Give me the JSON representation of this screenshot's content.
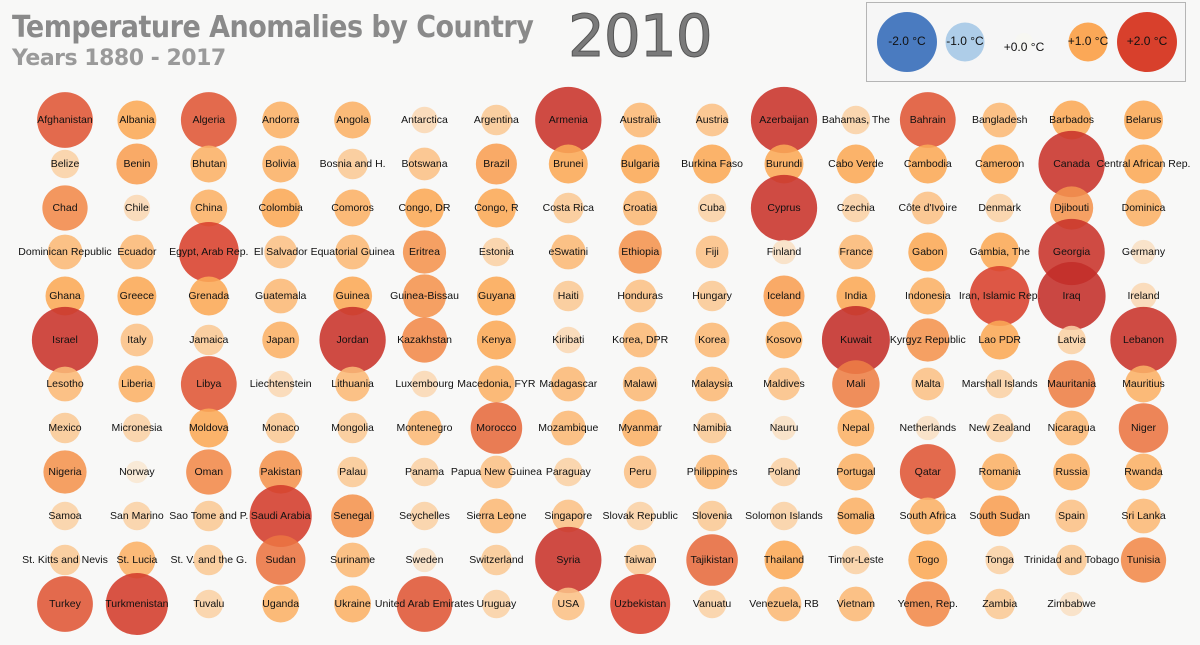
{
  "header": {
    "title": "Temperature Anomalies by Country",
    "subtitle": "Years 1880 - 2017",
    "year": "2010"
  },
  "legend": {
    "items": [
      {
        "label": "-2.0 °C",
        "value": -2.0,
        "color": "#4a7bc0"
      },
      {
        "label": "-1.0 °C",
        "value": -1.0,
        "color": "#aecde8"
      },
      {
        "label": "+0.0 °C",
        "value": 0.0,
        "color": "#f7f7f2"
      },
      {
        "label": "+1.0 °C",
        "value": 1.0,
        "color": "#fba857"
      },
      {
        "label": "+2.0 °C",
        "value": 2.0,
        "color": "#d8402c"
      }
    ]
  },
  "chart_data": {
    "type": "scatter",
    "title": "Temperature Anomalies by Country",
    "subtitle": "Years 1880 - 2017",
    "year": "2010",
    "units": "°C",
    "columns": 15,
    "color_scale": {
      "-2.0": "#4a7bc0",
      "-1.0": "#aecde8",
      "0.0": "#f7f7f2",
      "1.0": "#fba857",
      "2.0": "#d8402c"
    },
    "countries": [
      {
        "name": "Afghanistan",
        "anomaly": 1.8
      },
      {
        "name": "Albania",
        "anomaly": 1.0
      },
      {
        "name": "Algeria",
        "anomaly": 1.8
      },
      {
        "name": "Andorra",
        "anomaly": 0.9
      },
      {
        "name": "Angola",
        "anomaly": 0.9
      },
      {
        "name": "Antarctica",
        "anomaly": 0.4
      },
      {
        "name": "Argentina",
        "anomaly": 0.6
      },
      {
        "name": "Armenia",
        "anomaly": 2.3
      },
      {
        "name": "Australia",
        "anomaly": 0.8
      },
      {
        "name": "Austria",
        "anomaly": 0.7
      },
      {
        "name": "Azerbaijan",
        "anomaly": 2.3
      },
      {
        "name": "Bahamas, The",
        "anomaly": 0.5
      },
      {
        "name": "Bahrain",
        "anomaly": 1.8
      },
      {
        "name": "Bangladesh",
        "anomaly": 0.8
      },
      {
        "name": "Barbados",
        "anomaly": 1.0
      },
      {
        "name": "Belarus",
        "anomaly": 1.0
      },
      {
        "name": "Belize",
        "anomaly": 0.5
      },
      {
        "name": "Benin",
        "anomaly": 1.1
      },
      {
        "name": "Bhutan",
        "anomaly": 0.9
      },
      {
        "name": "Bolivia",
        "anomaly": 0.9
      },
      {
        "name": "Bosnia and H.",
        "anomaly": 0.6
      },
      {
        "name": "Botswana",
        "anomaly": 0.7
      },
      {
        "name": "Brazil",
        "anomaly": 1.1
      },
      {
        "name": "Brunei",
        "anomaly": 1.0
      },
      {
        "name": "Bulgaria",
        "anomaly": 1.0
      },
      {
        "name": "Burkina Faso",
        "anomaly": 1.0
      },
      {
        "name": "Burundi",
        "anomaly": 1.0
      },
      {
        "name": "Cabo Verde",
        "anomaly": 1.0
      },
      {
        "name": "Cambodia",
        "anomaly": 1.0
      },
      {
        "name": "Cameroon",
        "anomaly": 1.0
      },
      {
        "name": "Canada",
        "anomaly": 2.3
      },
      {
        "name": "Central African Rep.",
        "anomaly": 1.0
      },
      {
        "name": "Chad",
        "anomaly": 1.3
      },
      {
        "name": "Chile",
        "anomaly": 0.4
      },
      {
        "name": "China",
        "anomaly": 0.9
      },
      {
        "name": "Colombia",
        "anomaly": 1.0
      },
      {
        "name": "Comoros",
        "anomaly": 0.9
      },
      {
        "name": "Congo, DR",
        "anomaly": 1.0
      },
      {
        "name": "Congo, R",
        "anomaly": 1.0
      },
      {
        "name": "Costa Rica",
        "anomaly": 0.6
      },
      {
        "name": "Croatia",
        "anomaly": 0.8
      },
      {
        "name": "Cuba",
        "anomaly": 0.5
      },
      {
        "name": "Cyprus",
        "anomaly": 2.3
      },
      {
        "name": "Czechia",
        "anomaly": 0.5
      },
      {
        "name": "Côte d'Ivoire",
        "anomaly": 0.7
      },
      {
        "name": "Denmark",
        "anomaly": 0.5
      },
      {
        "name": "Djibouti",
        "anomaly": 1.2
      },
      {
        "name": "Dominica",
        "anomaly": 0.9
      },
      {
        "name": "Dominican Republic",
        "anomaly": 0.8
      },
      {
        "name": "Ecuador",
        "anomaly": 0.8
      },
      {
        "name": "Egypt, Arab Rep.",
        "anomaly": 2.0
      },
      {
        "name": "El Salvador",
        "anomaly": 0.7
      },
      {
        "name": "Equatorial Guinea",
        "anomaly": 0.8
      },
      {
        "name": "Eritrea",
        "anomaly": 1.2
      },
      {
        "name": "Estonia",
        "anomaly": 0.5
      },
      {
        "name": "eSwatini",
        "anomaly": 0.8
      },
      {
        "name": "Ethiopia",
        "anomaly": 1.2
      },
      {
        "name": "Fiji",
        "anomaly": 0.7
      },
      {
        "name": "Finland",
        "anomaly": 0.3
      },
      {
        "name": "France",
        "anomaly": 0.8
      },
      {
        "name": "Gabon",
        "anomaly": 1.0
      },
      {
        "name": "Gambia, The",
        "anomaly": 1.0
      },
      {
        "name": "Georgia",
        "anomaly": 2.3
      },
      {
        "name": "Germany",
        "anomaly": 0.3
      },
      {
        "name": "Ghana",
        "anomaly": 1.0
      },
      {
        "name": "Greece",
        "anomaly": 1.0
      },
      {
        "name": "Grenada",
        "anomaly": 1.0
      },
      {
        "name": "Guatemala",
        "anomaly": 0.8
      },
      {
        "name": "Guinea",
        "anomaly": 1.0
      },
      {
        "name": "Guinea-Bissau",
        "anomaly": 1.2
      },
      {
        "name": "Guyana",
        "anomaly": 1.0
      },
      {
        "name": "Haiti",
        "anomaly": 0.6
      },
      {
        "name": "Honduras",
        "anomaly": 0.7
      },
      {
        "name": "Hungary",
        "anomaly": 0.6
      },
      {
        "name": "Iceland",
        "anomaly": 1.1
      },
      {
        "name": "India",
        "anomaly": 1.0
      },
      {
        "name": "Indonesia",
        "anomaly": 0.9
      },
      {
        "name": "Iran, Islamic Rep.",
        "anomaly": 2.0
      },
      {
        "name": "Iraq",
        "anomaly": 2.4
      },
      {
        "name": "Ireland",
        "anomaly": 0.4
      },
      {
        "name": "Israel",
        "anomaly": 2.3
      },
      {
        "name": "Italy",
        "anomaly": 0.7
      },
      {
        "name": "Jamaica",
        "anomaly": 0.6
      },
      {
        "name": "Japan",
        "anomaly": 0.9
      },
      {
        "name": "Jordan",
        "anomaly": 2.3
      },
      {
        "name": "Kazakhstan",
        "anomaly": 1.3
      },
      {
        "name": "Kenya",
        "anomaly": 1.0
      },
      {
        "name": "Kiribati",
        "anomaly": 0.4
      },
      {
        "name": "Korea, DPR",
        "anomaly": 0.8
      },
      {
        "name": "Korea",
        "anomaly": 0.8
      },
      {
        "name": "Kosovo",
        "anomaly": 0.9
      },
      {
        "name": "Kuwait",
        "anomaly": 2.4
      },
      {
        "name": "Kyrgyz Republic",
        "anomaly": 1.2
      },
      {
        "name": "Lao PDR",
        "anomaly": 1.0
      },
      {
        "name": "Latvia",
        "anomaly": 0.5
      },
      {
        "name": "Lebanon",
        "anomaly": 2.3
      },
      {
        "name": "Lesotho",
        "anomaly": 0.8
      },
      {
        "name": "Liberia",
        "anomaly": 0.9
      },
      {
        "name": "Libya",
        "anomaly": 1.8
      },
      {
        "name": "Liechtenstein",
        "anomaly": 0.4
      },
      {
        "name": "Lithuania",
        "anomaly": 0.8
      },
      {
        "name": "Luxembourg",
        "anomaly": 0.4
      },
      {
        "name": "Macedonia, FYR",
        "anomaly": 0.9
      },
      {
        "name": "Madagascar",
        "anomaly": 0.8
      },
      {
        "name": "Malawi",
        "anomaly": 0.8
      },
      {
        "name": "Malaysia",
        "anomaly": 0.8
      },
      {
        "name": "Maldives",
        "anomaly": 0.7
      },
      {
        "name": "Mali",
        "anomaly": 1.4
      },
      {
        "name": "Malta",
        "anomaly": 0.7
      },
      {
        "name": "Marshall Islands",
        "anomaly": 0.5
      },
      {
        "name": "Mauritania",
        "anomaly": 1.4
      },
      {
        "name": "Mauritius",
        "anomaly": 0.9
      },
      {
        "name": "Mexico",
        "anomaly": 0.6
      },
      {
        "name": "Micronesia",
        "anomaly": 0.5
      },
      {
        "name": "Moldova",
        "anomaly": 1.0
      },
      {
        "name": "Monaco",
        "anomaly": 0.6
      },
      {
        "name": "Mongolia",
        "anomaly": 0.6
      },
      {
        "name": "Montenegro",
        "anomaly": 0.8
      },
      {
        "name": "Morocco",
        "anomaly": 1.6
      },
      {
        "name": "Mozambique",
        "anomaly": 0.8
      },
      {
        "name": "Myanmar",
        "anomaly": 0.9
      },
      {
        "name": "Namibia",
        "anomaly": 0.6
      },
      {
        "name": "Nauru",
        "anomaly": 0.3
      },
      {
        "name": "Nepal",
        "anomaly": 0.9
      },
      {
        "name": "Netherlands",
        "anomaly": 0.3
      },
      {
        "name": "New Zealand",
        "anomaly": 0.5
      },
      {
        "name": "Nicaragua",
        "anomaly": 0.8
      },
      {
        "name": "Niger",
        "anomaly": 1.5
      },
      {
        "name": "Nigeria",
        "anomaly": 1.2
      },
      {
        "name": "Norway",
        "anomaly": 0.2
      },
      {
        "name": "Oman",
        "anomaly": 1.3
      },
      {
        "name": "Pakistan",
        "anomaly": 1.2
      },
      {
        "name": "Palau",
        "anomaly": 0.6
      },
      {
        "name": "Panama",
        "anomaly": 0.5
      },
      {
        "name": "Papua New Guinea",
        "anomaly": 0.7
      },
      {
        "name": "Paraguay",
        "anomaly": 0.5
      },
      {
        "name": "Peru",
        "anomaly": 0.7
      },
      {
        "name": "Philippines",
        "anomaly": 0.8
      },
      {
        "name": "Poland",
        "anomaly": 0.5
      },
      {
        "name": "Portugal",
        "anomaly": 0.9
      },
      {
        "name": "Qatar",
        "anomaly": 1.8
      },
      {
        "name": "Romania",
        "anomaly": 0.9
      },
      {
        "name": "Russia",
        "anomaly": 0.9
      },
      {
        "name": "Rwanda",
        "anomaly": 0.9
      },
      {
        "name": "Samoa",
        "anomaly": 0.5
      },
      {
        "name": "San Marino",
        "anomaly": 0.5
      },
      {
        "name": "Sao Tome and P.",
        "anomaly": 0.6
      },
      {
        "name": "Saudi Arabia",
        "anomaly": 2.1
      },
      {
        "name": "Senegal",
        "anomaly": 1.2
      },
      {
        "name": "Seychelles",
        "anomaly": 0.5
      },
      {
        "name": "Sierra Leone",
        "anomaly": 0.8
      },
      {
        "name": "Singapore",
        "anomaly": 0.7
      },
      {
        "name": "Slovak Republic",
        "anomaly": 0.5
      },
      {
        "name": "Slovenia",
        "anomaly": 0.6
      },
      {
        "name": "Solomon Islands",
        "anomaly": 0.5
      },
      {
        "name": "Somalia",
        "anomaly": 0.9
      },
      {
        "name": "South Africa",
        "anomaly": 0.9
      },
      {
        "name": "South Sudan",
        "anomaly": 1.1
      },
      {
        "name": "Spain",
        "anomaly": 0.7
      },
      {
        "name": "Sri Lanka",
        "anomaly": 0.8
      },
      {
        "name": "St. Kitts and Nevis",
        "anomaly": 0.6
      },
      {
        "name": "St. Lucia",
        "anomaly": 0.9
      },
      {
        "name": "St. V. and the G.",
        "anomaly": 0.6
      },
      {
        "name": "Sudan",
        "anomaly": 1.5
      },
      {
        "name": "Suriname",
        "anomaly": 0.8
      },
      {
        "name": "Sweden",
        "anomaly": 0.3
      },
      {
        "name": "Switzerland",
        "anomaly": 0.6
      },
      {
        "name": "Syria",
        "anomaly": 2.3
      },
      {
        "name": "Taiwan",
        "anomaly": 0.6
      },
      {
        "name": "Tajikistan",
        "anomaly": 1.6
      },
      {
        "name": "Thailand",
        "anomaly": 1.0
      },
      {
        "name": "Timor-Leste",
        "anomaly": 0.5
      },
      {
        "name": "Togo",
        "anomaly": 1.0
      },
      {
        "name": "Tonga",
        "anomaly": 0.5
      },
      {
        "name": "Trinidad and Tobago",
        "anomaly": 0.6
      },
      {
        "name": "Tunisia",
        "anomaly": 1.3
      },
      {
        "name": "Turkey",
        "anomaly": 1.8
      },
      {
        "name": "Turkmenistan",
        "anomaly": 2.1
      },
      {
        "name": "Tuvalu",
        "anomaly": 0.5
      },
      {
        "name": "Uganda",
        "anomaly": 0.9
      },
      {
        "name": "Ukraine",
        "anomaly": 0.9
      },
      {
        "name": "United Arab Emirates",
        "anomaly": 1.8
      },
      {
        "name": "Uruguay",
        "anomaly": 0.5
      },
      {
        "name": "USA",
        "anomaly": 0.7
      },
      {
        "name": "Uzbekistan",
        "anomaly": 2.0
      },
      {
        "name": "Vanuatu",
        "anomaly": 0.5
      },
      {
        "name": "Venezuela, RB",
        "anomaly": 0.8
      },
      {
        "name": "Vietnam",
        "anomaly": 0.8
      },
      {
        "name": "Yemen, Rep.",
        "anomaly": 1.3
      },
      {
        "name": "Zambia",
        "anomaly": 0.6
      },
      {
        "name": "Zimbabwe",
        "anomaly": 0.3
      }
    ]
  }
}
